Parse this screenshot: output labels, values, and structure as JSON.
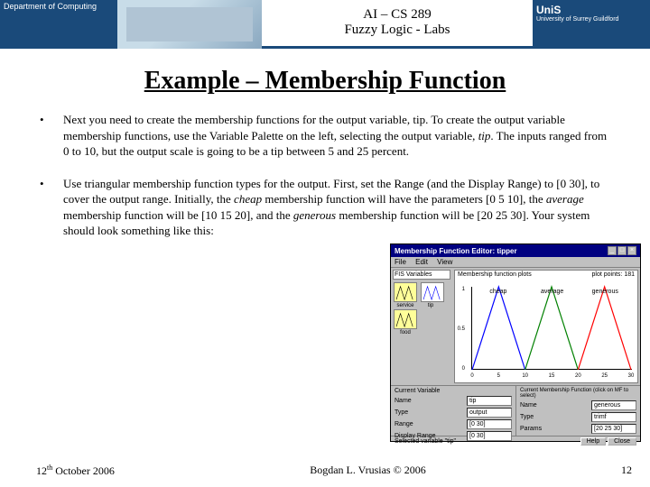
{
  "header": {
    "dept": "Department of Computing",
    "course_line1": "AI – CS 289",
    "course_line2": "Fuzzy Logic - Labs",
    "uni_tag": "UniS",
    "uni_sub": "University of Surrey Guildford"
  },
  "title": "Example – Membership Function",
  "bullet1": "Next you need to create the membership functions for the output variable, tip. To create the output variable membership functions, use the Variable Palette on the left, selecting the output variable, <em>tip</em>. The inputs ranged from 0 to 10, but the output scale is going to be a tip between 5 and 25 percent.",
  "bullet2": "Use triangular membership function types for the output. First, set the Range (and the Display Range) to [0 30], to cover the output range. Initially, the <em>cheap</em> membership function will have the parameters [0 5 10], the <em>average</em> membership function will be [10 15 20], and the <em>generous</em> membership function will be [20 25 30]. Your system should look something like this:",
  "editor": {
    "title": "Membership Function Editor: tipper",
    "menu": [
      "File",
      "Edit",
      "View"
    ],
    "left_title": "FIS Variables",
    "vars": [
      {
        "name": "service",
        "kind": "in"
      },
      {
        "name": "tip",
        "kind": "out"
      },
      {
        "name": "food",
        "kind": "in"
      }
    ],
    "plot_hdr_left": "Membership function plots",
    "plot_hdr_right_label": "plot points:",
    "plot_hdr_right_val": "181",
    "mf_labels": [
      "cheap",
      "average",
      "generous"
    ],
    "axis": {
      "xmin": 0,
      "xmax": 30,
      "ymin": 0,
      "ymax": 1,
      "xticks": [
        0,
        5,
        10,
        15,
        20,
        25,
        30
      ]
    },
    "mf_triangles": [
      {
        "pts": [
          [
            0,
            0
          ],
          [
            5,
            1
          ],
          [
            10,
            0
          ]
        ],
        "color": "#0000ff"
      },
      {
        "pts": [
          [
            10,
            0
          ],
          [
            15,
            1
          ],
          [
            20,
            0
          ]
        ],
        "color": "#008000"
      },
      {
        "pts": [
          [
            20,
            0
          ],
          [
            25,
            1
          ],
          [
            30,
            0
          ]
        ],
        "color": "#ff0000"
      }
    ],
    "cv": {
      "title": "Current Variable",
      "name_l": "Name",
      "name_v": "tip",
      "type_l": "Type",
      "type_v": "output",
      "range_l": "Range",
      "range_v": "[0 30]",
      "drange_l": "Display Range",
      "drange_v": "[0 30]"
    },
    "cmf": {
      "title": "Current Membership Function (click on MF to select)",
      "name_l": "Name",
      "name_v": "generous",
      "type_l": "Type",
      "type_v": "trimf",
      "params_l": "Params",
      "params_v": "[20 25 30]"
    },
    "status": "Selected variable \"tip\"",
    "help": "Help",
    "close": "Close"
  },
  "footer": {
    "date_pre": "12",
    "date_sup": "th",
    "date_post": " October 2006",
    "center": "Bogdan L. Vrusias © 2006",
    "page": "12"
  }
}
